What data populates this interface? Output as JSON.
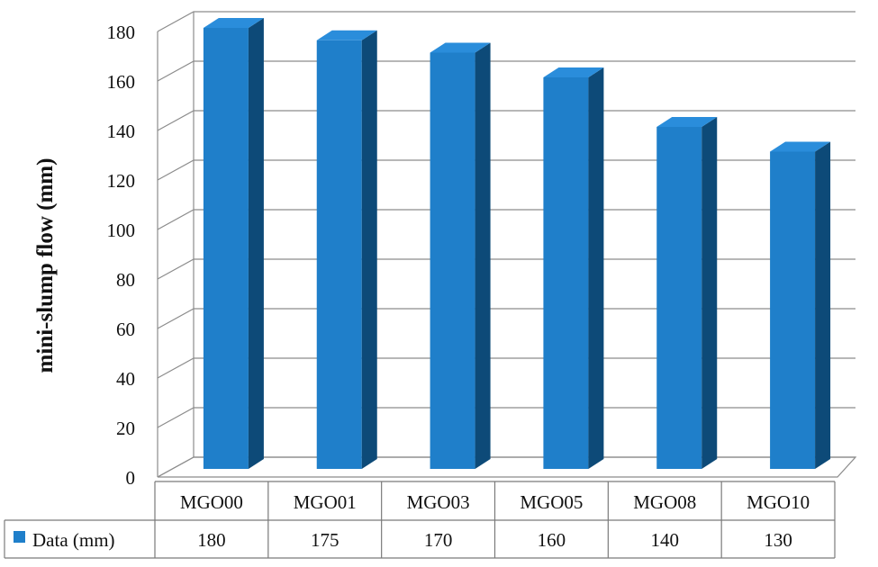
{
  "chart_data": {
    "type": "bar",
    "title": "",
    "xlabel": "",
    "ylabel": "mini-slump flow (mm)",
    "ylim": [
      0,
      180
    ],
    "yticks": [
      0,
      20,
      40,
      60,
      80,
      100,
      120,
      140,
      160,
      180
    ],
    "categories": [
      "MGO00",
      "MGO01",
      "MGO03",
      "MGO05",
      "MGO08",
      "MGO10"
    ],
    "series": [
      {
        "name": "Data (mm)",
        "values": [
          180,
          175,
          170,
          160,
          140,
          130
        ],
        "color": "#1f7fca"
      }
    ],
    "colors": {
      "front": "#1f7fca",
      "top": "#2a8ddb",
      "side": "#0d4a78"
    },
    "grid": true,
    "three_d": true,
    "data_table": true,
    "legend": "data-table-row"
  }
}
